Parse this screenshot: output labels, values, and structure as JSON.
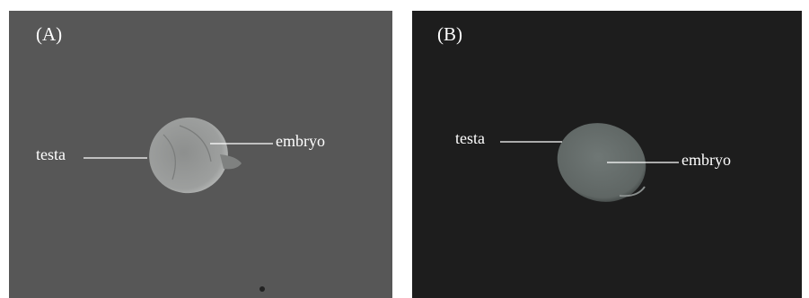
{
  "panels": [
    {
      "label": "(A)",
      "testa": "testa",
      "embryo": "embryo"
    },
    {
      "label": "(B)",
      "testa": "testa",
      "embryo": "embryo"
    }
  ]
}
